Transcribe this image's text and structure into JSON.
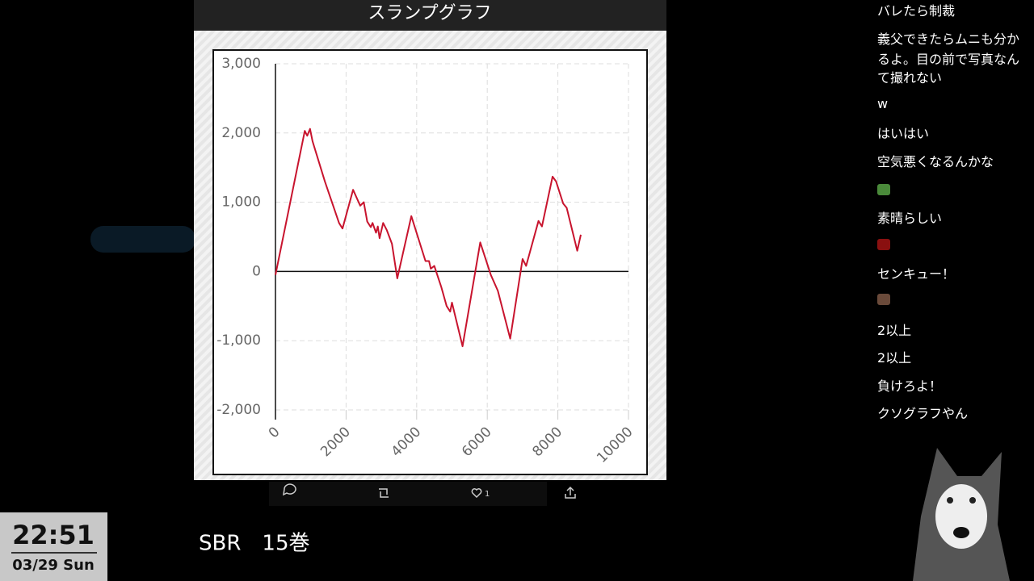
{
  "chart_data": {
    "type": "line",
    "title": "スランプグラフ",
    "x": [
      0,
      830,
      900,
      980,
      1050,
      1400,
      1800,
      1900,
      2200,
      2400,
      2500,
      2600,
      2700,
      2750,
      2850,
      2900,
      2950,
      3050,
      3150,
      3300,
      3450,
      3850,
      4250,
      4350,
      4400,
      4500,
      4700,
      4850,
      4950,
      5000,
      5300,
      5800,
      6100,
      6300,
      6650,
      7000,
      7100,
      7450,
      7550,
      7850,
      7950,
      8150,
      8250,
      8550,
      8650
    ],
    "series": [
      {
        "color": "#c8142e",
        "values": [
          -50,
          2030,
          1960,
          2060,
          1880,
          1300,
          700,
          620,
          1180,
          950,
          1000,
          720,
          640,
          700,
          560,
          650,
          480,
          700,
          600,
          400,
          -100,
          800,
          150,
          150,
          40,
          80,
          -230,
          -500,
          -580,
          -450,
          -1080,
          420,
          -50,
          -280,
          -970,
          180,
          80,
          730,
          650,
          1370,
          1300,
          980,
          920,
          300,
          530
        ]
      }
    ],
    "xlim": [
      0,
      10000
    ],
    "xticks": [
      0,
      2000,
      4000,
      6000,
      8000,
      10000
    ],
    "ylim": [
      -2000,
      3000
    ],
    "yticks": [
      {
        "value": -2000,
        "label": "-2,000"
      },
      {
        "value": -1000,
        "label": "-1,000"
      },
      0,
      {
        "value": 1000,
        "label": "1,000"
      },
      {
        "value": 2000,
        "label": "2,000"
      },
      {
        "value": 3000,
        "label": "3,000"
      }
    ],
    "grid": true
  },
  "chat": [
    "バレたら制裁",
    "義父できたらムニも分か",
    "るよ。目の前で写真なん",
    "て撮れない",
    "w",
    "はいはい",
    "空気悪くなるんかな",
    "素晴らしい",
    "センキュー！",
    "2以上",
    "2以上",
    "負けろよ！",
    "クソグラフやん"
  ],
  "like_count": "1",
  "clock": {
    "time": "22:51",
    "date": "03/29 Sun"
  },
  "caption": "SBR　15巻"
}
